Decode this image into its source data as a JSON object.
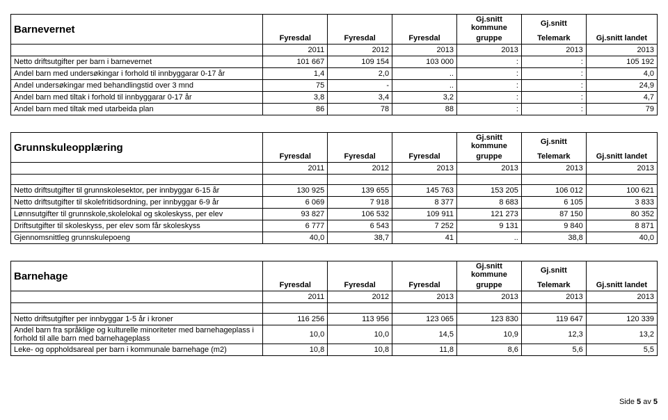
{
  "tables": [
    {
      "title": "Barnevernet",
      "headers": [
        "Fyresdal",
        "Fyresdal",
        "Fyresdal",
        "Gj.snitt kommune gruppe",
        "Gj.snitt Telemark",
        "Gj.snitt landet"
      ],
      "years": [
        "2011",
        "2012",
        "2013",
        "2013",
        "2013",
        "2013"
      ],
      "rows": [
        {
          "label": "Netto driftsutgifter per barn i barnevernet",
          "cells": [
            "101 667",
            "109 154",
            "103 000",
            ":",
            ":",
            "105 192"
          ]
        },
        {
          "label": "Andel barn med undersøkingar i forhold til innbyggarar 0-17 år",
          "cells": [
            "1,4",
            "2,0",
            "..",
            ":",
            ":",
            "4,0"
          ]
        },
        {
          "label": "Andel undersøkingar med behandlingstid over 3 mnd",
          "cells": [
            "75",
            "-",
            "..",
            ":",
            ":",
            "24,9"
          ]
        },
        {
          "label": "Andel barn med tiltak i forhold til innbyggarar 0-17 år",
          "cells": [
            "3,8",
            "3,4",
            "3,2",
            ":",
            ":",
            "4,7"
          ]
        },
        {
          "label": "Andel barn med tiltak med utarbeida plan",
          "cells": [
            "86",
            "78",
            "88",
            ":",
            ":",
            "79"
          ]
        }
      ],
      "blankAfterYears": false
    },
    {
      "title": "Grunnskuleopplæring",
      "headers": [
        "Fyresdal",
        "Fyresdal",
        "Fyresdal",
        "Gj.snitt kommune gruppe",
        "Gj.snitt Telemark",
        "Gj.snitt landet"
      ],
      "years": [
        "2011",
        "2012",
        "2013",
        "2013",
        "2013",
        "2013"
      ],
      "rows": [
        {
          "label": "Netto driftsutgifter til grunnskolesektor, per innbyggar 6-15 år",
          "cells": [
            "130 925",
            "139 655",
            "145 763",
            "153 205",
            "106 012",
            "100 621"
          ]
        },
        {
          "label": "Netto driftsutgifter til skolefritidsordning, per innbyggar 6-9 år",
          "cells": [
            "6 069",
            "7 918",
            "8 377",
            "8 683",
            "6 105",
            "3 833"
          ]
        },
        {
          "label": "Lønnsutgifter til grunnskole,skolelokal og skoleskyss, per elev",
          "cells": [
            "93 827",
            "106 532",
            "109 911",
            "121 273",
            "87 150",
            "80 352"
          ]
        },
        {
          "label": "Driftsutgifter til skoleskyss, per elev som får skoleskyss",
          "cells": [
            "6 777",
            "6 543",
            "7 252",
            "9 131",
            "9 840",
            "8 871"
          ]
        },
        {
          "label": "Gjennomsnittleg grunnskulepoeng",
          "cells": [
            "40,0",
            "38,7",
            "41",
            "..",
            "38,8",
            "40,0"
          ]
        }
      ],
      "blankAfterYears": true
    },
    {
      "title": "Barnehage",
      "headers": [
        "Fyresdal",
        "Fyresdal",
        "Fyresdal",
        "Gj.snitt kommune gruppe",
        "Gj.snitt Telemark",
        "Gj.snitt landet"
      ],
      "years": [
        "2011",
        "2012",
        "2013",
        "2013",
        "2013",
        "2013"
      ],
      "rows": [
        {
          "label": "Netto driftsutgifter per innbyggar 1-5 år i kroner",
          "cells": [
            "116 256",
            "113 956",
            "123 065",
            "123 830",
            "119 647",
            "120 339"
          ]
        },
        {
          "label": "Andel barn fra språklige og kulturelle minoriteter med barnehageplass i forhold til alle barn med barnehageplass",
          "cells": [
            "10,0",
            "10,0",
            "14,5",
            "10,9",
            "12,3",
            "13,2"
          ]
        },
        {
          "label": "Leke- og oppholdsareal per barn i kommunale barnehage (m2)",
          "cells": [
            "10,8",
            "10,8",
            "11,8",
            "8,6",
            "5,6",
            "5,5"
          ]
        }
      ],
      "blankAfterYears": true
    }
  ],
  "footer": {
    "prefix": "Side ",
    "page": "5",
    "middle": " av ",
    "total": "5"
  }
}
